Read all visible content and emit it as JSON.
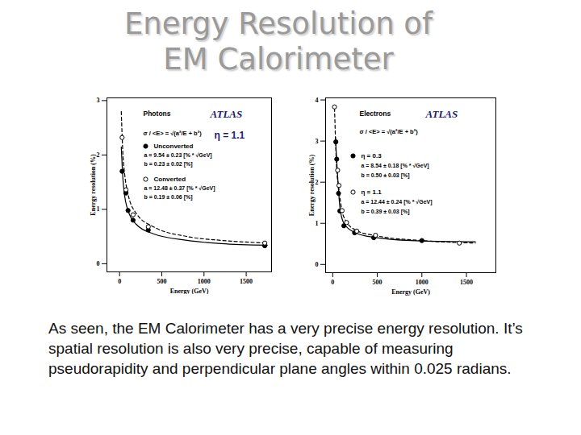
{
  "title": "Energy Resolution of EM Calorimeter",
  "caption": "As seen, the EM Calorimeter has a very precise energy resolution. It’s spatial resolution is also very precise, capable of measuring pseudorapidity and perpendicular plane angles within 0.025 radians.",
  "chart_data": [
    {
      "type": "scatter",
      "title": "Photons",
      "brand": "ATLAS",
      "formula": "σ / <E> = √(a²/E + b²)",
      "eta": "η = 1.1",
      "x_label": "Energy (GeV)",
      "y_label": "Energy resolution (%)",
      "xlim": [
        -150,
        1800
      ],
      "xticks": [
        0,
        500,
        1000,
        1500
      ],
      "ylim": [
        -0.15,
        3.05
      ],
      "yticks": [
        0,
        1,
        2,
        3
      ],
      "series": [
        {
          "name": "Unconverted",
          "color": "#000000",
          "marker": "filled",
          "line_style": "solid",
          "params": [
            "a = 9.54 ± 0.23 [% * √GeV]",
            "b = 0.23 ± 0.02 [%]"
          ],
          "x": [
            30,
            75,
            100,
            160,
            340,
            1720
          ],
          "values": [
            1.7,
            1.3,
            0.98,
            0.8,
            0.62,
            0.33
          ],
          "fit_x": [
            20,
            40,
            60,
            100,
            200,
            400,
            800,
            1200,
            1750
          ],
          "fit_values": [
            2.15,
            1.55,
            1.25,
            0.98,
            0.72,
            0.55,
            0.43,
            0.37,
            0.34
          ]
        },
        {
          "name": "Converted",
          "color": "#000000",
          "marker": "open",
          "line_style": "dashed",
          "params": [
            "a = 12.48 ± 0.37 [% * √GeV]",
            "b = 0.19 ± 0.06 [%]"
          ],
          "x": [
            30,
            75,
            160,
            340,
            1720
          ],
          "values": [
            2.32,
            1.36,
            0.9,
            0.68,
            0.38
          ],
          "fit_x": [
            20,
            40,
            60,
            100,
            200,
            400,
            800,
            1200,
            1750
          ],
          "fit_values": [
            2.8,
            2.0,
            1.65,
            1.28,
            0.92,
            0.68,
            0.5,
            0.43,
            0.38
          ]
        }
      ]
    },
    {
      "type": "scatter",
      "title": "Electrons",
      "brand": "ATLAS",
      "formula": "σ / <E> = √(a²/E + b²)",
      "x_label": "Energy (GeV)",
      "y_label": "Energy resolution (%)",
      "xlim": [
        -80,
        1830
      ],
      "xticks": [
        0,
        500,
        1000,
        1500
      ],
      "ylim": [
        -0.2,
        4.05
      ],
      "yticks": [
        0,
        1,
        2,
        3,
        4
      ],
      "series": [
        {
          "name": "η = 0.3",
          "color": "#000000",
          "marker": "filled",
          "line_style": "solid",
          "params": [
            "a = 8.54 ± 0.18 [% * √GeV]",
            "b = 0.50 ± 0.03 [%]"
          ],
          "x": [
            35,
            45,
            65,
            80,
            125,
            245,
            460,
            1000
          ],
          "values": [
            2.98,
            2.56,
            1.73,
            1.3,
            0.94,
            0.77,
            0.65,
            0.58
          ],
          "fit_x": [
            30,
            45,
            65,
            80,
            125,
            245,
            460,
            1000,
            1600
          ],
          "fit_values": [
            3.1,
            2.5,
            1.8,
            1.4,
            1.0,
            0.78,
            0.66,
            0.57,
            0.55
          ]
        },
        {
          "name": "η = 1.1",
          "color": "#000000",
          "marker": "open",
          "line_style": "dashed",
          "params": [
            "a = 12.44 ± 0.24 [% * √GeV]",
            "b = 0.39 ± 0.03 [%]"
          ],
          "x": [
            20,
            55,
            70,
            105,
            155,
            270,
            480,
            1420
          ],
          "values": [
            3.83,
            2.29,
            1.92,
            1.31,
            1.02,
            0.81,
            0.71,
            0.52
          ],
          "fit_x": [
            20,
            45,
            65,
            100,
            150,
            270,
            480,
            1000,
            1600
          ],
          "fit_values": [
            3.8,
            2.3,
            1.9,
            1.35,
            1.05,
            0.82,
            0.7,
            0.58,
            0.52
          ]
        }
      ]
    }
  ]
}
